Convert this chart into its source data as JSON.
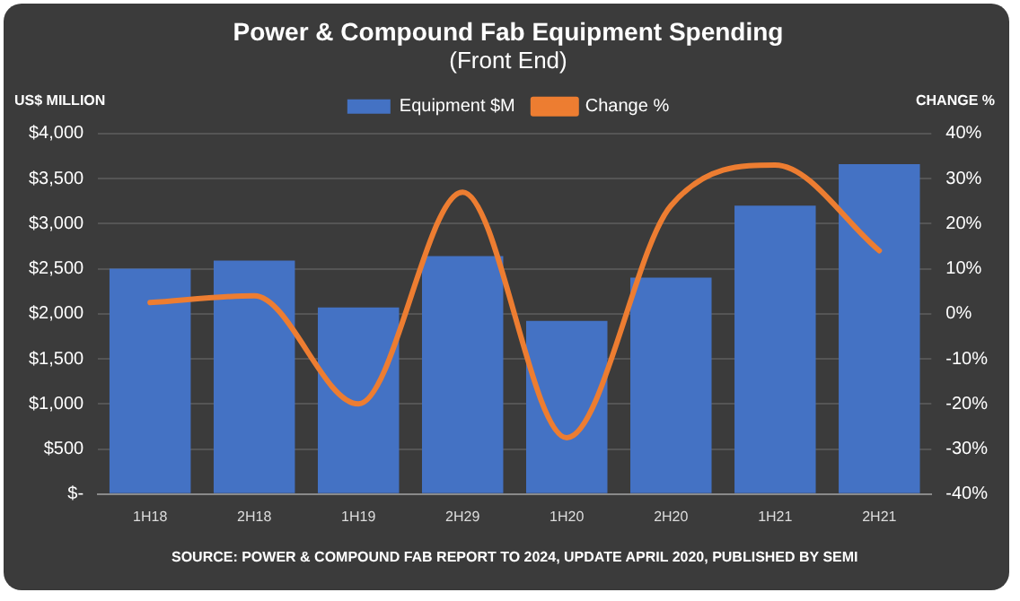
{
  "chart_data": {
    "type": "bar",
    "title": "Power & Compound Fab Equipment Spending",
    "subtitle": "(Front End)",
    "ylabel": "US$ MILLION",
    "y2label": "CHANGE %",
    "categories": [
      "1H18",
      "2H18",
      "1H19",
      "2H29",
      "1H20",
      "2H20",
      "1H21",
      "2H21"
    ],
    "series": [
      {
        "name": "Equipment $M",
        "color": "#4472c4",
        "values": [
          2500,
          2590,
          2070,
          2640,
          1920,
          2400,
          3200,
          3660
        ]
      },
      {
        "name": "Change %",
        "type": "line",
        "axis": "y2",
        "color": "#ed7d31",
        "values": [
          2.5,
          4,
          -20,
          27,
          -27.5,
          24,
          33,
          14
        ]
      }
    ],
    "ylim": [
      0,
      4000
    ],
    "yticks": [
      {
        "value": 0,
        "label": "$-"
      },
      {
        "value": 500,
        "label": "$500"
      },
      {
        "value": 1000,
        "label": "$1,000"
      },
      {
        "value": 1500,
        "label": "$1,500"
      },
      {
        "value": 2000,
        "label": "$2,000"
      },
      {
        "value": 2500,
        "label": "$2,500"
      },
      {
        "value": 3000,
        "label": "$3,000"
      },
      {
        "value": 3500,
        "label": "$3,500"
      },
      {
        "value": 4000,
        "label": "$4,000"
      }
    ],
    "y2lim": [
      -40,
      40
    ],
    "y2ticks": [
      {
        "value": -40,
        "label": "-40%"
      },
      {
        "value": -30,
        "label": "-30%"
      },
      {
        "value": -20,
        "label": "-20%"
      },
      {
        "value": -10,
        "label": "-10%"
      },
      {
        "value": 0,
        "label": "0%"
      },
      {
        "value": 10,
        "label": "10%"
      },
      {
        "value": 20,
        "label": "20%"
      },
      {
        "value": 30,
        "label": "30%"
      },
      {
        "value": 40,
        "label": "40%"
      }
    ],
    "grid": "y",
    "legend": "top",
    "marker": "none",
    "annotations": [
      "SOURCE: POWER & COMPOUND FAB REPORT TO 2024, UPDATE APRIL 2020, PUBLISHED BY SEMI"
    ]
  }
}
